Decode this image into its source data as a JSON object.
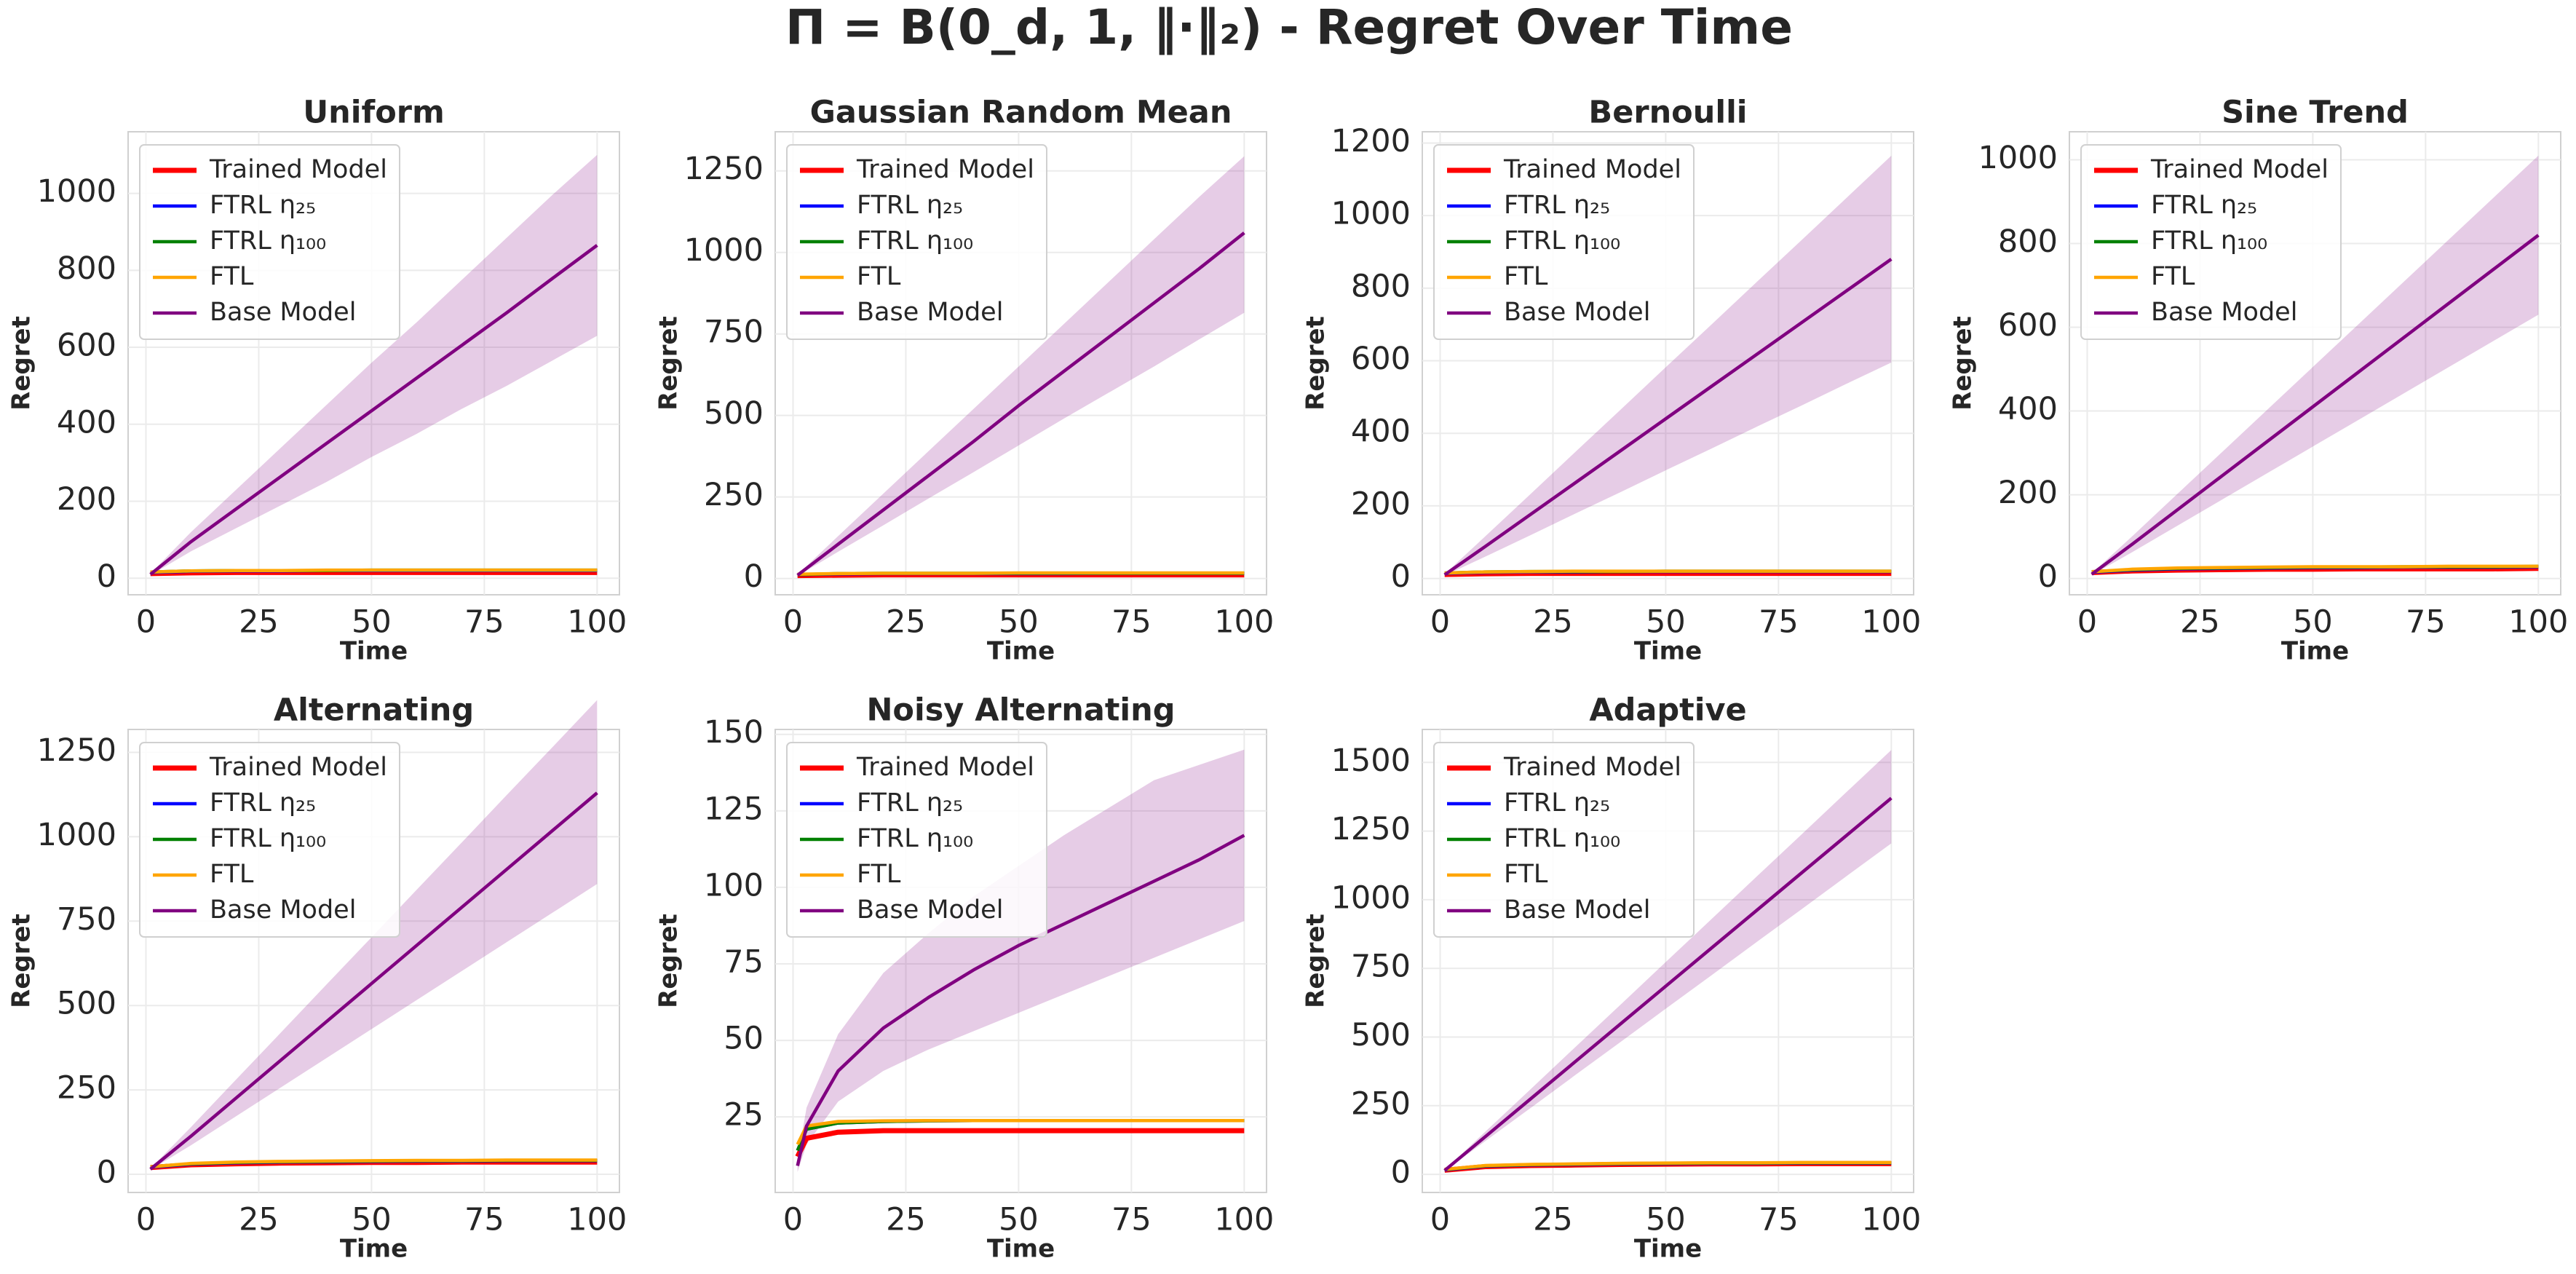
{
  "title": "Π = B(0_d, 1, ‖·‖₂) - Regret Over Time",
  "chart_data": [
    {
      "type": "line",
      "title": "Uniform",
      "xlabel": "Time",
      "ylabel": "Regret",
      "x": [
        1,
        10,
        20,
        30,
        40,
        50,
        60,
        70,
        80,
        90,
        100
      ],
      "xlim": [
        -3.95,
        104.95
      ],
      "xticks": [
        0,
        25,
        50,
        75,
        100
      ],
      "ylim": [
        -43,
        1160
      ],
      "yticks": [
        0,
        200,
        400,
        600,
        800,
        1000
      ],
      "grid": true,
      "legend": "upper left",
      "series": [
        {
          "name": "Trained Model",
          "color": "#ff0000",
          "values": [
            12,
            14,
            15,
            15,
            15,
            15,
            15,
            15,
            15,
            15,
            15
          ]
        },
        {
          "name": "FTRL η₂₅",
          "color": "#0000ff",
          "values": [
            15,
            18,
            19,
            19,
            20,
            20,
            20,
            20,
            20,
            20,
            20
          ]
        },
        {
          "name": "FTRL η₁₀₀",
          "color": "#008000",
          "values": [
            16,
            19,
            20,
            20,
            20,
            21,
            21,
            21,
            21,
            21,
            21
          ]
        },
        {
          "name": "FTL",
          "color": "#ffa500",
          "values": [
            16,
            19,
            20,
            20,
            21,
            21,
            21,
            21,
            21,
            21,
            21
          ]
        },
        {
          "name": "Base Model",
          "color": "#800080",
          "values": [
            10,
            95,
            180,
            265,
            350,
            435,
            520,
            605,
            690,
            778,
            865
          ],
          "upper": [
            12,
            120,
            230,
            340,
            450,
            560,
            665,
            775,
            885,
            995,
            1100
          ],
          "lower": [
            8,
            70,
            130,
            190,
            250,
            315,
            375,
            440,
            500,
            565,
            630
          ]
        }
      ]
    },
    {
      "type": "line",
      "title": "Gaussian Random Mean",
      "xlabel": "Time",
      "ylabel": "Regret",
      "x": [
        1,
        10,
        20,
        30,
        40,
        50,
        60,
        70,
        80,
        90,
        100
      ],
      "xlim": [
        -3.95,
        104.95
      ],
      "xticks": [
        0,
        25,
        50,
        75,
        100
      ],
      "ylim": [
        -50,
        1370
      ],
      "yticks": [
        0,
        250,
        500,
        750,
        1000,
        1250
      ],
      "grid": true,
      "legend": "upper left",
      "series": [
        {
          "name": "Trained Model",
          "color": "#ff0000",
          "values": [
            9,
            10,
            11,
            11,
            11,
            11,
            11,
            11,
            11,
            11,
            11
          ]
        },
        {
          "name": "FTRL η₂₅",
          "color": "#0000ff",
          "values": [
            12,
            14,
            15,
            15,
            15,
            15,
            15,
            16,
            16,
            16,
            16
          ]
        },
        {
          "name": "FTRL η₁₀₀",
          "color": "#008000",
          "values": [
            12,
            15,
            16,
            16,
            16,
            16,
            16,
            16,
            16,
            16,
            16
          ]
        },
        {
          "name": "FTL",
          "color": "#ffa500",
          "values": [
            13,
            15,
            16,
            16,
            16,
            17,
            17,
            17,
            17,
            17,
            17
          ]
        },
        {
          "name": "Base Model",
          "color": "#800080",
          "values": [
            10,
            105,
            210,
            315,
            420,
            530,
            635,
            740,
            845,
            950,
            1060
          ],
          "upper": [
            12,
            130,
            260,
            390,
            520,
            650,
            780,
            910,
            1040,
            1170,
            1295
          ],
          "lower": [
            8,
            82,
            163,
            245,
            326,
            408,
            490,
            570,
            650,
            733,
            815
          ]
        }
      ]
    },
    {
      "type": "line",
      "title": "Bernoulli",
      "xlabel": "Time",
      "ylabel": "Regret",
      "x": [
        1,
        10,
        20,
        30,
        40,
        50,
        60,
        70,
        80,
        90,
        100
      ],
      "xlim": [
        -3.95,
        104.95
      ],
      "xticks": [
        0,
        25,
        50,
        75,
        100
      ],
      "ylim": [
        -45,
        1231
      ],
      "yticks": [
        0,
        200,
        400,
        600,
        800,
        1000,
        1200
      ],
      "grid": true,
      "legend": "upper left",
      "series": [
        {
          "name": "Trained Model",
          "color": "#ff0000",
          "values": [
            11,
            13,
            14,
            14,
            14,
            14,
            14,
            14,
            14,
            14,
            14
          ]
        },
        {
          "name": "FTRL η₂₅",
          "color": "#0000ff",
          "values": [
            14,
            17,
            18,
            18,
            19,
            19,
            19,
            19,
            19,
            19,
            19
          ]
        },
        {
          "name": "FTRL η₁₀₀",
          "color": "#008000",
          "values": [
            15,
            18,
            19,
            19,
            19,
            20,
            20,
            20,
            20,
            20,
            20
          ]
        },
        {
          "name": "FTL",
          "color": "#ffa500",
          "values": [
            15,
            18,
            19,
            20,
            20,
            20,
            20,
            20,
            20,
            20,
            20
          ]
        },
        {
          "name": "Base Model",
          "color": "#800080",
          "values": [
            10,
            88,
            176,
            264,
            352,
            440,
            528,
            616,
            704,
            792,
            880
          ],
          "upper": [
            12,
            116,
            232,
            349,
            465,
            582,
            698,
            815,
            931,
            1048,
            1165
          ],
          "lower": [
            8,
            60,
            119,
            179,
            238,
            298,
            357,
            417,
            476,
            536,
            595
          ]
        }
      ]
    },
    {
      "type": "line",
      "title": "Sine Trend",
      "xlabel": "Time",
      "ylabel": "Regret",
      "x": [
        1,
        10,
        20,
        30,
        40,
        50,
        60,
        70,
        80,
        90,
        100
      ],
      "xlim": [
        -3.95,
        104.95
      ],
      "xticks": [
        0,
        25,
        50,
        75,
        100
      ],
      "ylim": [
        -39,
        1067
      ],
      "yticks": [
        0,
        200,
        400,
        600,
        800,
        1000
      ],
      "grid": true,
      "legend": "upper left",
      "series": [
        {
          "name": "Trained Model",
          "color": "#ff0000",
          "values": [
            14,
            18,
            20,
            21,
            22,
            22,
            23,
            23,
            23,
            23,
            24
          ]
        },
        {
          "name": "FTRL η₂₅",
          "color": "#0000ff",
          "values": [
            15,
            20,
            23,
            24,
            25,
            26,
            26,
            27,
            27,
            27,
            28
          ]
        },
        {
          "name": "FTRL η₁₀₀",
          "color": "#008000",
          "values": [
            16,
            21,
            24,
            25,
            26,
            27,
            27,
            28,
            28,
            28,
            29
          ]
        },
        {
          "name": "FTL",
          "color": "#ffa500",
          "values": [
            16,
            22,
            25,
            26,
            27,
            28,
            28,
            28,
            29,
            29,
            29
          ]
        },
        {
          "name": "Base Model",
          "color": "#800080",
          "values": [
            10,
            82,
            164,
            246,
            328,
            410,
            492,
            574,
            656,
            738,
            820
          ],
          "upper": [
            12,
            101,
            202,
            303,
            404,
            505,
            606,
            707,
            808,
            909,
            1010
          ],
          "lower": [
            8,
            63,
            126,
            189,
            252,
            315,
            378,
            441,
            504,
            567,
            630
          ]
        }
      ]
    },
    {
      "type": "line",
      "title": "Alternating",
      "xlabel": "Time",
      "ylabel": "Regret",
      "x": [
        1,
        10,
        20,
        30,
        40,
        50,
        60,
        70,
        80,
        90,
        100
      ],
      "xlim": [
        -3.95,
        104.95
      ],
      "xticks": [
        0,
        25,
        50,
        75,
        100
      ],
      "ylim": [
        -54,
        1318
      ],
      "yticks": [
        0,
        250,
        500,
        750,
        1000,
        1250
      ],
      "grid": true,
      "legend": "upper left",
      "series": [
        {
          "name": "Trained Model",
          "color": "#ff0000",
          "values": [
            20,
            28,
            31,
            33,
            34,
            35,
            35,
            36,
            36,
            36,
            36
          ]
        },
        {
          "name": "FTRL η₂₅",
          "color": "#0000ff",
          "values": [
            21,
            30,
            34,
            36,
            37,
            38,
            39,
            39,
            40,
            40,
            40
          ]
        },
        {
          "name": "FTRL η₁₀₀",
          "color": "#008000",
          "values": [
            22,
            31,
            35,
            37,
            38,
            39,
            40,
            40,
            41,
            41,
            41
          ]
        },
        {
          "name": "FTL",
          "color": "#ffa500",
          "values": [
            22,
            32,
            36,
            38,
            39,
            40,
            41,
            41,
            42,
            42,
            42
          ]
        },
        {
          "name": "Base Model",
          "color": "#800080",
          "values": [
            15,
            113,
            226,
            339,
            452,
            565,
            678,
            791,
            904,
            1017,
            1130
          ],
          "upper": [
            17,
            140,
            281,
            421,
            562,
            702,
            843,
            983,
            1124,
            1264,
            1405
          ],
          "lower": [
            13,
            86,
            172,
            258,
            344,
            430,
            516,
            602,
            688,
            774,
            860
          ]
        }
      ]
    },
    {
      "type": "line",
      "title": "Noisy Alternating",
      "xlabel": "Time",
      "ylabel": "Regret",
      "x": [
        1,
        3,
        10,
        20,
        30,
        40,
        50,
        60,
        70,
        80,
        90,
        100
      ],
      "xlim": [
        -3.95,
        104.95
      ],
      "xticks": [
        0,
        25,
        50,
        75,
        100
      ],
      "ylim": [
        0.3,
        151.6
      ],
      "yticks": [
        25,
        50,
        75,
        100,
        125,
        150
      ],
      "grid": true,
      "legend": "upper left",
      "series": [
        {
          "name": "Trained Model",
          "color": "#ff0000",
          "values": [
            12,
            18,
            20,
            20.5,
            20.5,
            20.5,
            20.5,
            20.5,
            20.5,
            20.5,
            20.5,
            20.5
          ]
        },
        {
          "name": "FTRL η₂₅",
          "color": "#0000ff",
          "values": [
            14,
            21,
            23,
            23.5,
            23.7,
            23.8,
            23.8,
            23.8,
            23.8,
            23.8,
            23.8,
            23.8
          ]
        },
        {
          "name": "FTRL η₁₀₀",
          "color": "#008000",
          "values": [
            14,
            21,
            23,
            23.5,
            23.7,
            23.8,
            23.8,
            23.8,
            23.8,
            23.8,
            23.8,
            23.8
          ]
        },
        {
          "name": "FTL",
          "color": "#ffa500",
          "values": [
            16,
            22,
            23.5,
            23.7,
            23.8,
            23.8,
            23.8,
            23.8,
            23.8,
            23.8,
            23.8,
            23.8
          ]
        },
        {
          "name": "Base Model",
          "color": "#800080",
          "values": [
            9,
            22,
            40,
            54,
            64,
            73,
            81,
            88,
            95,
            102,
            109,
            117
          ],
          "upper": [
            11,
            28,
            52,
            72,
            85,
            97,
            107,
            117,
            126,
            135,
            140,
            145
          ],
          "lower": [
            7,
            16,
            30,
            40,
            47,
            53,
            59,
            65,
            71,
            77,
            83,
            89
          ]
        }
      ]
    },
    {
      "type": "line",
      "title": "Adaptive",
      "xlabel": "Time",
      "ylabel": "Regret",
      "x": [
        1,
        10,
        20,
        30,
        40,
        50,
        60,
        70,
        80,
        90,
        100
      ],
      "xlim": [
        -3.95,
        104.95
      ],
      "xticks": [
        0,
        25,
        50,
        75,
        100
      ],
      "ylim": [
        -66,
        1620
      ],
      "yticks": [
        0,
        250,
        500,
        750,
        1000,
        1250,
        1500
      ],
      "grid": true,
      "legend": "upper left",
      "series": [
        {
          "name": "Trained Model",
          "color": "#ff0000",
          "values": [
            15,
            28,
            32,
            34,
            36,
            37,
            38,
            38,
            39,
            39,
            39
          ]
        },
        {
          "name": "FTRL η₂₅",
          "color": "#0000ff",
          "values": [
            16,
            30,
            34,
            36,
            38,
            39,
            40,
            40,
            41,
            41,
            41
          ]
        },
        {
          "name": "FTRL η₁₀₀",
          "color": "#008000",
          "values": [
            17,
            31,
            35,
            37,
            39,
            40,
            41,
            41,
            42,
            42,
            42
          ]
        },
        {
          "name": "FTL",
          "color": "#ffa500",
          "values": [
            18,
            32,
            36,
            38,
            40,
            41,
            42,
            42,
            43,
            43,
            43
          ]
        },
        {
          "name": "Base Model",
          "color": "#800080",
          "values": [
            14,
            137,
            274,
            411,
            548,
            685,
            822,
            959,
            1096,
            1233,
            1370
          ],
          "upper": [
            16,
            155,
            309,
            464,
            618,
            773,
            927,
            1082,
            1236,
            1391,
            1545
          ],
          "lower": [
            12,
            121,
            241,
            362,
            482,
            603,
            723,
            844,
            964,
            1085,
            1205
          ]
        }
      ]
    }
  ]
}
